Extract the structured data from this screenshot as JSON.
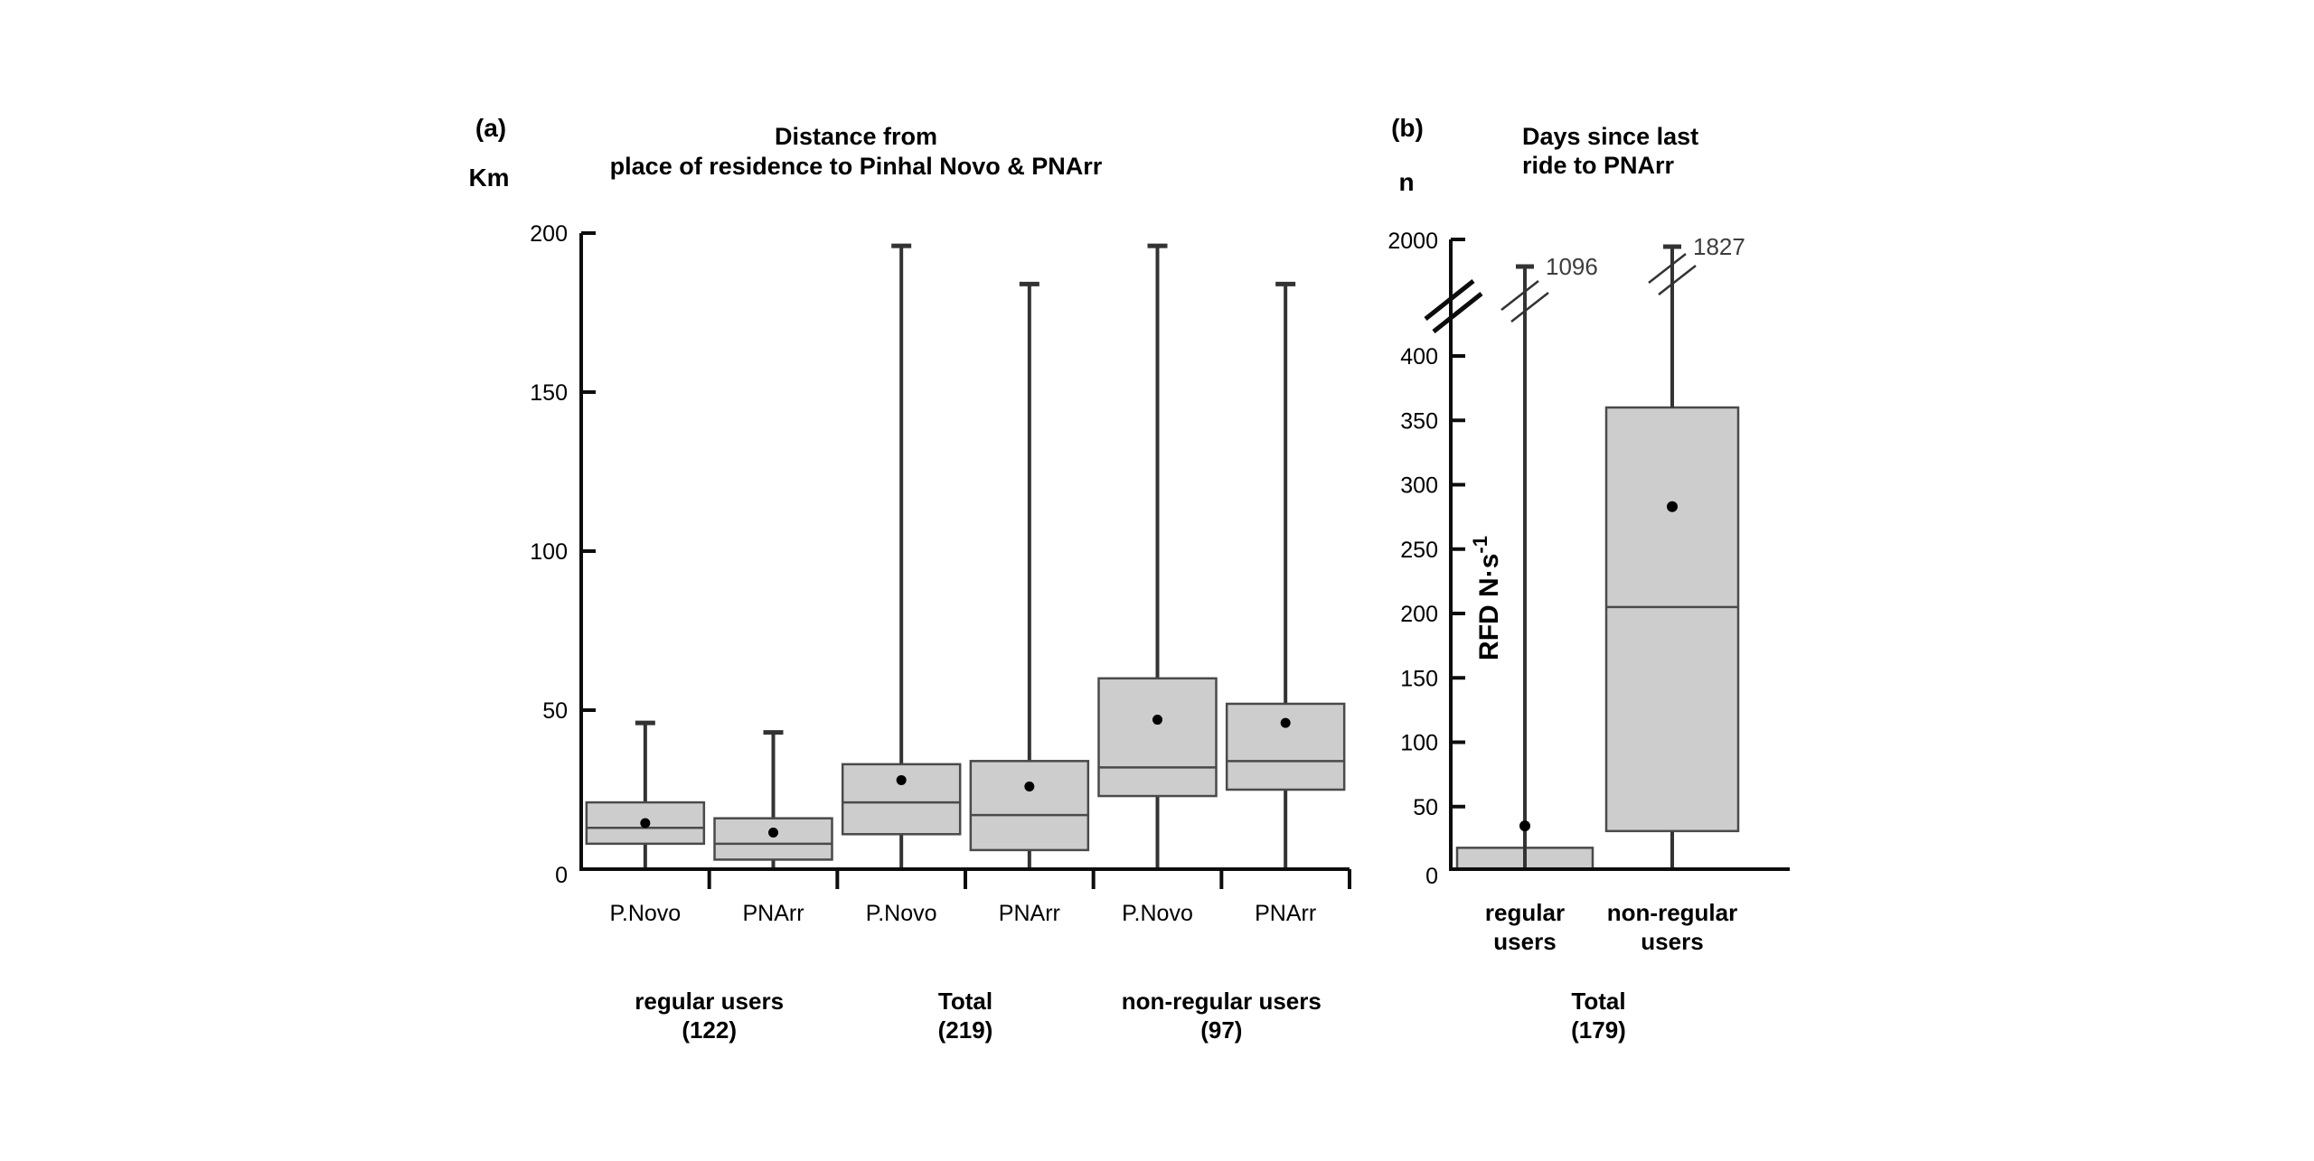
{
  "figure_description": "Two-panel box plot figure",
  "colors": {
    "background": "#ffffff",
    "box_fill": "#cdcdcd",
    "box_border": "#4a4a4a",
    "whisker": "#333333",
    "axis": "#0d0d0d",
    "mean_dot": "#000000",
    "extreme_label": "#3d3d3d"
  },
  "chart_data": [
    {
      "type": "boxplot",
      "panel_label": "(a)",
      "title_lines": [
        "Distance from",
        "place of residence to Pinhal Novo & PNArr"
      ],
      "y_axis_unit": "Km",
      "ylim": [
        0,
        200
      ],
      "yticks": [
        0,
        50,
        100,
        150,
        200
      ],
      "grid": false,
      "legend": "none",
      "categories": [
        "P.Novo",
        "PNArr",
        "P.Novo",
        "PNArr",
        "P.Novo",
        "PNArr"
      ],
      "group_labels": [
        {
          "label": "regular users",
          "count": "(122)"
        },
        {
          "label": "Total",
          "count": "(219)"
        },
        {
          "label": "non-regular users",
          "count": "(97)"
        }
      ],
      "boxes": [
        {
          "group": "regular users",
          "category": "P.Novo",
          "whisker_low": 0,
          "q1": 8,
          "median": 13,
          "q3": 21,
          "whisker_high": 46,
          "mean": 14.5
        },
        {
          "group": "regular users",
          "category": "PNArr",
          "whisker_low": 0,
          "q1": 3,
          "median": 8,
          "q3": 16,
          "whisker_high": 43,
          "mean": 11.5
        },
        {
          "group": "Total",
          "category": "P.Novo",
          "whisker_low": 0,
          "q1": 11,
          "median": 21,
          "q3": 33,
          "whisker_high": 196,
          "mean": 28
        },
        {
          "group": "Total",
          "category": "PNArr",
          "whisker_low": 0,
          "q1": 6,
          "median": 17,
          "q3": 34,
          "whisker_high": 184,
          "mean": 26
        },
        {
          "group": "non-regular users",
          "category": "P.Novo",
          "whisker_low": 0,
          "q1": 23,
          "median": 32,
          "q3": 60,
          "whisker_high": 196,
          "mean": 47
        },
        {
          "group": "non-regular users",
          "category": "PNArr",
          "whisker_low": 0,
          "q1": 25,
          "median": 34,
          "q3": 52,
          "whisker_high": 184,
          "mean": 46
        }
      ]
    },
    {
      "type": "boxplot",
      "panel_label": "(b)",
      "title_lines": [
        "Days since last",
        "ride to PNArr"
      ],
      "y_axis_unit": "n",
      "ylim_linear_region": [
        0,
        437
      ],
      "yticks": [
        0,
        50,
        100,
        150,
        200,
        250,
        300,
        350,
        400
      ],
      "axis_break_top_tick": 2000,
      "grid": false,
      "legend": "none",
      "rotated_inner_label": {
        "base": "RFD N·s",
        "sup": "-1"
      },
      "category_lines": [
        [
          "regular",
          "users"
        ],
        [
          "non-regular",
          "users"
        ]
      ],
      "total_label": {
        "label": "Total",
        "count": "(179)"
      },
      "boxes": [
        {
          "category": "regular users",
          "q1": 0,
          "median": null,
          "q3": 18,
          "mean": 35,
          "whisker_high": 1096,
          "whisker_high_label": "1096",
          "whisker_break": true
        },
        {
          "category": "non-regular users",
          "whisker_low": 0,
          "q1": 31,
          "median": 205,
          "q3": 360,
          "mean": 283,
          "whisker_high": 1827,
          "whisker_high_label": "1827",
          "whisker_break": true
        }
      ]
    }
  ]
}
